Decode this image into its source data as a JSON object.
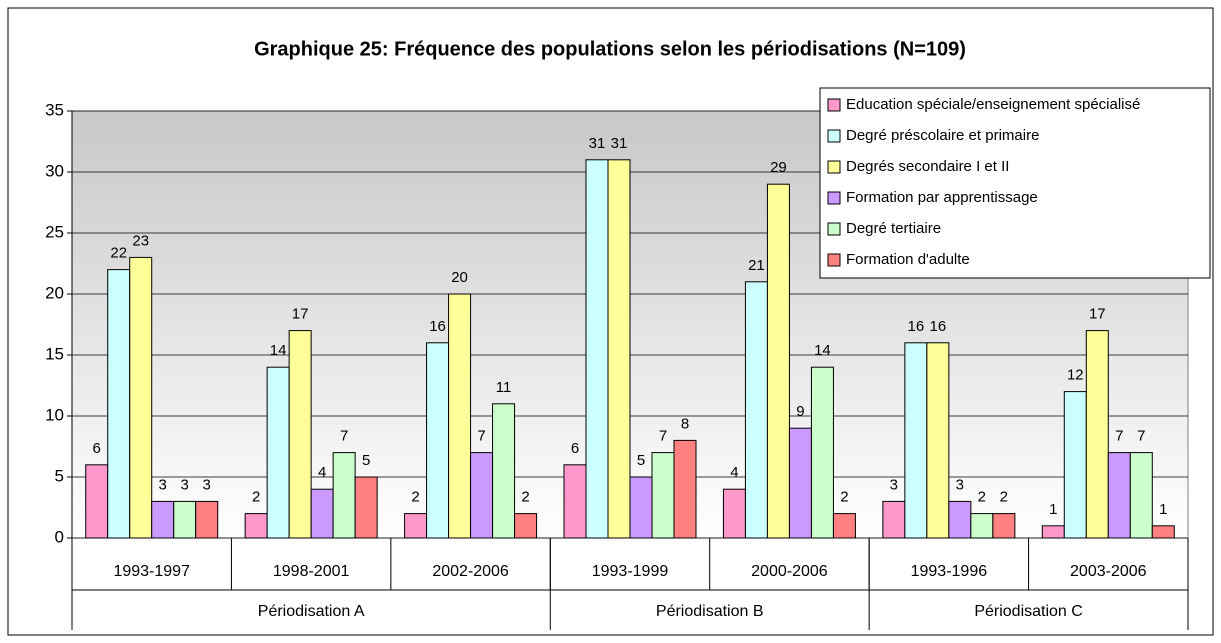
{
  "chart_data": {
    "type": "bar",
    "title": "Graphique 25: Fréquence des populations selon les périodisations (N=109)",
    "groups": [
      {
        "name": "Périodisation A",
        "categories": [
          "1993-1997",
          "1998-2001",
          "2002-2006"
        ]
      },
      {
        "name": "Périodisation B",
        "categories": [
          "1993-1999",
          "2000-2006"
        ]
      },
      {
        "name": "Périodisation C",
        "categories": [
          "1993-1996",
          "2003-2006"
        ]
      }
    ],
    "series": [
      {
        "name": "Education spéciale/enseignement spécialisé",
        "color": "#ff99cc",
        "values": [
          6,
          2,
          2,
          6,
          4,
          3,
          1
        ]
      },
      {
        "name": "Degré préscolaire et primaire",
        "color": "#ccffff",
        "values": [
          22,
          14,
          16,
          31,
          21,
          16,
          12
        ]
      },
      {
        "name": "Degrés secondaire I et II",
        "color": "#ffff99",
        "values": [
          23,
          17,
          20,
          31,
          29,
          16,
          17
        ]
      },
      {
        "name": "Formation par apprentissage",
        "color": "#cc99ff",
        "values": [
          3,
          4,
          7,
          5,
          9,
          3,
          7
        ]
      },
      {
        "name": "Degré tertiaire",
        "color": "#ccffcc",
        "values": [
          3,
          7,
          11,
          7,
          14,
          2,
          7
        ]
      },
      {
        "name": "Formation d'adulte",
        "color": "#ff8080",
        "values": [
          3,
          5,
          2,
          8,
          2,
          2,
          1
        ]
      }
    ],
    "ylim": [
      0,
      35
    ],
    "yticks": [
      0,
      5,
      10,
      15,
      20,
      25,
      30,
      35
    ],
    "grid": true,
    "legend": "top-right"
  }
}
